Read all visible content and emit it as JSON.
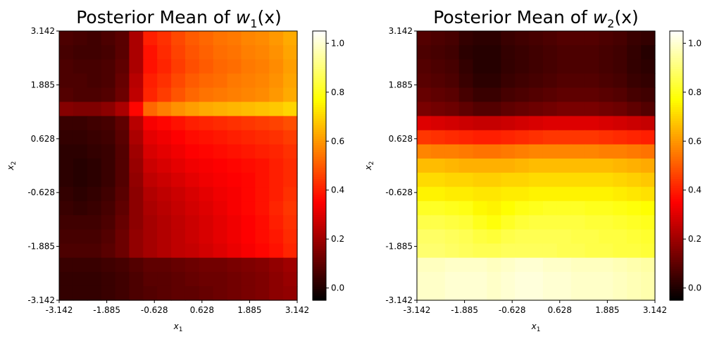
{
  "chart_data": [
    {
      "type": "heatmap",
      "title": "Posterior Mean of w1(x)",
      "title_main": "Posterior Mean of ",
      "title_var": "w",
      "title_sub": "1",
      "title_arg": "(x)",
      "xlabel": "x1",
      "xlabel_var": "x",
      "xlabel_sub": "1",
      "ylabel": "x2",
      "ylabel_var": "x",
      "ylabel_sub": "2",
      "xlim": [
        -3.142,
        3.142
      ],
      "ylim": [
        -3.142,
        3.142
      ],
      "xticks": [
        "-3.142",
        "-1.885",
        "-0.628",
        "0.628",
        "1.885",
        "3.142"
      ],
      "yticks": [
        "-3.142",
        "-1.885",
        "-0.628",
        "0.628",
        "1.885",
        "3.142"
      ],
      "colormap": "hot",
      "colorbar": {
        "vmin": -0.05,
        "vmax": 1.05,
        "ticks": [
          "0.0",
          "0.2",
          "0.4",
          "0.6",
          "0.8",
          "1.0"
        ]
      },
      "grid_rows_top_to_bottom": [
        [
          0.07,
          0.06,
          0.05,
          0.07,
          0.09,
          0.22,
          0.4,
          0.43,
          0.47,
          0.5,
          0.52,
          0.54,
          0.55,
          0.57,
          0.58,
          0.6,
          0.63
        ],
        [
          0.06,
          0.05,
          0.05,
          0.06,
          0.09,
          0.22,
          0.38,
          0.42,
          0.46,
          0.49,
          0.51,
          0.53,
          0.54,
          0.56,
          0.57,
          0.59,
          0.62
        ],
        [
          0.07,
          0.06,
          0.06,
          0.07,
          0.1,
          0.22,
          0.38,
          0.41,
          0.45,
          0.48,
          0.5,
          0.52,
          0.53,
          0.55,
          0.56,
          0.58,
          0.61
        ],
        [
          0.07,
          0.07,
          0.06,
          0.07,
          0.11,
          0.24,
          0.4,
          0.43,
          0.47,
          0.5,
          0.52,
          0.53,
          0.55,
          0.56,
          0.57,
          0.59,
          0.62
        ],
        [
          0.08,
          0.07,
          0.07,
          0.08,
          0.12,
          0.25,
          0.41,
          0.45,
          0.49,
          0.52,
          0.54,
          0.55,
          0.56,
          0.57,
          0.58,
          0.6,
          0.63
        ],
        [
          0.16,
          0.15,
          0.15,
          0.17,
          0.22,
          0.36,
          0.52,
          0.56,
          0.59,
          0.61,
          0.63,
          0.64,
          0.65,
          0.66,
          0.67,
          0.68,
          0.7
        ],
        [
          0.04,
          0.04,
          0.05,
          0.06,
          0.1,
          0.24,
          0.34,
          0.36,
          0.38,
          0.4,
          0.41,
          0.42,
          0.43,
          0.44,
          0.45,
          0.46,
          0.48
        ],
        [
          0.03,
          0.03,
          0.04,
          0.05,
          0.09,
          0.22,
          0.31,
          0.33,
          0.35,
          0.37,
          0.38,
          0.39,
          0.4,
          0.41,
          0.42,
          0.43,
          0.45
        ],
        [
          0.02,
          0.02,
          0.03,
          0.04,
          0.08,
          0.2,
          0.29,
          0.31,
          0.33,
          0.35,
          0.36,
          0.37,
          0.38,
          0.39,
          0.4,
          0.41,
          0.43
        ],
        [
          0.02,
          0.01,
          0.02,
          0.04,
          0.08,
          0.19,
          0.27,
          0.29,
          0.31,
          0.33,
          0.34,
          0.35,
          0.36,
          0.37,
          0.38,
          0.4,
          0.42
        ],
        [
          0.02,
          0.01,
          0.02,
          0.04,
          0.08,
          0.18,
          0.25,
          0.27,
          0.29,
          0.31,
          0.33,
          0.34,
          0.35,
          0.36,
          0.38,
          0.4,
          0.42
        ],
        [
          0.03,
          0.02,
          0.03,
          0.05,
          0.09,
          0.17,
          0.23,
          0.25,
          0.27,
          0.29,
          0.31,
          0.33,
          0.34,
          0.36,
          0.38,
          0.4,
          0.43
        ],
        [
          0.04,
          0.03,
          0.04,
          0.06,
          0.1,
          0.17,
          0.22,
          0.24,
          0.26,
          0.28,
          0.3,
          0.32,
          0.34,
          0.36,
          0.38,
          0.41,
          0.44
        ],
        [
          0.05,
          0.05,
          0.05,
          0.07,
          0.11,
          0.17,
          0.21,
          0.23,
          0.25,
          0.27,
          0.29,
          0.31,
          0.33,
          0.35,
          0.37,
          0.4,
          0.43
        ],
        [
          0.06,
          0.06,
          0.06,
          0.08,
          0.12,
          0.18,
          0.21,
          0.23,
          0.25,
          0.27,
          0.29,
          0.31,
          0.33,
          0.35,
          0.37,
          0.39,
          0.42
        ],
        [
          0.07,
          0.07,
          0.07,
          0.09,
          0.12,
          0.18,
          0.21,
          0.23,
          0.25,
          0.26,
          0.28,
          0.3,
          0.32,
          0.34,
          0.36,
          0.38,
          0.41
        ],
        [
          0.04,
          0.04,
          0.04,
          0.05,
          0.06,
          0.08,
          0.1,
          0.1,
          0.11,
          0.12,
          0.13,
          0.13,
          0.14,
          0.15,
          0.16,
          0.18,
          0.2
        ],
        [
          0.03,
          0.03,
          0.03,
          0.04,
          0.05,
          0.07,
          0.09,
          0.09,
          0.1,
          0.11,
          0.12,
          0.12,
          0.13,
          0.14,
          0.15,
          0.17,
          0.19
        ],
        [
          0.03,
          0.03,
          0.03,
          0.04,
          0.05,
          0.07,
          0.08,
          0.09,
          0.1,
          0.1,
          0.11,
          0.12,
          0.13,
          0.14,
          0.15,
          0.17,
          0.18
        ]
      ]
    },
    {
      "type": "heatmap",
      "title": "Posterior Mean of w2(x)",
      "title_main": "Posterior Mean of ",
      "title_var": "w",
      "title_sub": "2",
      "title_arg": "(x)",
      "xlabel": "x1",
      "xlabel_var": "x",
      "xlabel_sub": "1",
      "ylabel": "x2",
      "ylabel_var": "x",
      "ylabel_sub": "2",
      "xlim": [
        -3.142,
        3.142
      ],
      "ylim": [
        -3.142,
        3.142
      ],
      "xticks": [
        "-3.142",
        "-1.885",
        "-0.628",
        "0.628",
        "1.885",
        "3.142"
      ],
      "yticks": [
        "-3.142",
        "-1.885",
        "-0.628",
        "0.628",
        "1.885",
        "3.142"
      ],
      "colormap": "hot",
      "colorbar": {
        "vmin": -0.05,
        "vmax": 1.05,
        "ticks": [
          "0.0",
          "0.2",
          "0.4",
          "0.6",
          "0.8",
          "1.0"
        ]
      },
      "grid_rows_top_to_bottom": [
        [
          0.08,
          0.07,
          0.06,
          0.03,
          0.02,
          0.02,
          0.04,
          0.05,
          0.06,
          0.07,
          0.08,
          0.08,
          0.08,
          0.07,
          0.06,
          0.04,
          0.03
        ],
        [
          0.07,
          0.06,
          0.05,
          0.02,
          0.01,
          0.01,
          0.03,
          0.04,
          0.05,
          0.06,
          0.07,
          0.07,
          0.07,
          0.06,
          0.05,
          0.03,
          0.01
        ],
        [
          0.08,
          0.07,
          0.06,
          0.03,
          0.01,
          0.01,
          0.03,
          0.04,
          0.05,
          0.06,
          0.07,
          0.07,
          0.07,
          0.06,
          0.05,
          0.03,
          0.02
        ],
        [
          0.09,
          0.08,
          0.07,
          0.04,
          0.02,
          0.02,
          0.04,
          0.05,
          0.06,
          0.07,
          0.08,
          0.08,
          0.08,
          0.07,
          0.06,
          0.04,
          0.03
        ],
        [
          0.11,
          0.1,
          0.09,
          0.06,
          0.04,
          0.04,
          0.06,
          0.07,
          0.08,
          0.09,
          0.1,
          0.1,
          0.1,
          0.09,
          0.08,
          0.06,
          0.05
        ],
        [
          0.14,
          0.13,
          0.12,
          0.1,
          0.08,
          0.08,
          0.1,
          0.11,
          0.12,
          0.13,
          0.14,
          0.14,
          0.14,
          0.13,
          0.12,
          0.1,
          0.08
        ],
        [
          0.3,
          0.29,
          0.28,
          0.27,
          0.26,
          0.26,
          0.27,
          0.28,
          0.29,
          0.3,
          0.3,
          0.3,
          0.3,
          0.29,
          0.28,
          0.27,
          0.26
        ],
        [
          0.44,
          0.43,
          0.42,
          0.41,
          0.4,
          0.4,
          0.41,
          0.42,
          0.43,
          0.44,
          0.44,
          0.44,
          0.44,
          0.43,
          0.42,
          0.41,
          0.4
        ],
        [
          0.57,
          0.56,
          0.56,
          0.55,
          0.54,
          0.54,
          0.55,
          0.56,
          0.57,
          0.57,
          0.57,
          0.57,
          0.57,
          0.56,
          0.56,
          0.55,
          0.54
        ],
        [
          0.66,
          0.66,
          0.65,
          0.64,
          0.64,
          0.64,
          0.64,
          0.65,
          0.66,
          0.66,
          0.66,
          0.66,
          0.66,
          0.66,
          0.65,
          0.64,
          0.63
        ],
        [
          0.71,
          0.71,
          0.7,
          0.7,
          0.69,
          0.69,
          0.7,
          0.7,
          0.71,
          0.71,
          0.71,
          0.71,
          0.71,
          0.71,
          0.7,
          0.69,
          0.68
        ],
        [
          0.75,
          0.75,
          0.74,
          0.74,
          0.73,
          0.73,
          0.74,
          0.74,
          0.75,
          0.75,
          0.75,
          0.75,
          0.75,
          0.75,
          0.74,
          0.73,
          0.72
        ],
        [
          0.81,
          0.81,
          0.8,
          0.79,
          0.76,
          0.75,
          0.77,
          0.79,
          0.8,
          0.81,
          0.81,
          0.81,
          0.8,
          0.8,
          0.79,
          0.78,
          0.77
        ],
        [
          0.85,
          0.85,
          0.84,
          0.83,
          0.8,
          0.78,
          0.81,
          0.83,
          0.84,
          0.84,
          0.84,
          0.84,
          0.83,
          0.83,
          0.82,
          0.81,
          0.8
        ],
        [
          0.88,
          0.88,
          0.87,
          0.86,
          0.84,
          0.83,
          0.85,
          0.86,
          0.86,
          0.86,
          0.86,
          0.85,
          0.85,
          0.84,
          0.84,
          0.83,
          0.82
        ],
        [
          0.89,
          0.89,
          0.88,
          0.87,
          0.86,
          0.86,
          0.87,
          0.87,
          0.87,
          0.87,
          0.86,
          0.86,
          0.85,
          0.85,
          0.84,
          0.84,
          0.83
        ],
        [
          0.98,
          0.98,
          0.99,
          0.99,
          0.99,
          0.98,
          0.99,
          1.0,
          1.0,
          0.99,
          0.99,
          0.98,
          0.98,
          0.98,
          0.97,
          0.96,
          0.95
        ],
        [
          0.99,
          0.99,
          1.0,
          1.0,
          1.0,
          0.99,
          1.0,
          1.01,
          1.01,
          1.0,
          1.0,
          0.99,
          0.99,
          0.99,
          0.98,
          0.97,
          0.96
        ],
        [
          0.99,
          0.99,
          1.0,
          1.0,
          1.0,
          0.99,
          1.0,
          1.01,
          1.01,
          1.0,
          1.0,
          0.99,
          0.99,
          0.99,
          0.98,
          0.97,
          0.96
        ]
      ]
    }
  ]
}
